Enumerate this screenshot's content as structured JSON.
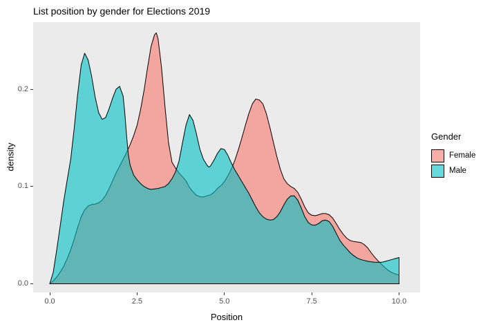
{
  "title": "List position by gender for Elections 2019",
  "axes": {
    "x": {
      "label": "Position",
      "tick_labels": [
        "0.0",
        "2.5",
        "5.0",
        "7.5",
        "10.0"
      ],
      "tick_values": [
        0,
        2.5,
        5,
        7.5,
        10
      ]
    },
    "y": {
      "label": "density",
      "tick_labels": [
        "0.0",
        "0.1",
        "0.2"
      ],
      "tick_values": [
        0,
        0.1,
        0.2
      ]
    }
  },
  "legend": {
    "title": "Gender",
    "position": "right",
    "fill_alpha": 0.6,
    "items": [
      {
        "label": "Female",
        "color": "#F8766D"
      },
      {
        "label": "Male",
        "color": "#00BFC4"
      }
    ]
  },
  "colors": {
    "panel_background": "#EBEBEB",
    "outline": "#000000",
    "tick_text": "#4D4D4D",
    "tick_mark": "#333333",
    "title_text": "#000000"
  },
  "chart_data": {
    "type": "area",
    "subtype": "density",
    "title": "List position by gender for Elections 2019",
    "xlabel": "Position",
    "ylabel": "density",
    "xlim": [
      -0.5,
      10.5
    ],
    "ylim": [
      0,
      0.269
    ],
    "grid": false,
    "legend_position": "right",
    "series": [
      {
        "name": "Female",
        "color": "#F8766D",
        "points": [
          [
            0,
            0
          ],
          [
            0.1,
            0.003
          ],
          [
            0.2,
            0.007
          ],
          [
            0.3,
            0.012
          ],
          [
            0.4,
            0.018
          ],
          [
            0.5,
            0.026
          ],
          [
            0.6,
            0.035
          ],
          [
            0.7,
            0.046
          ],
          [
            0.8,
            0.058
          ],
          [
            0.9,
            0.069
          ],
          [
            1,
            0.076
          ],
          [
            1.1,
            0.08
          ],
          [
            1.2,
            0.0815
          ],
          [
            1.3,
            0.082
          ],
          [
            1.4,
            0.0832
          ],
          [
            1.5,
            0.086
          ],
          [
            1.6,
            0.091
          ],
          [
            1.7,
            0.098
          ],
          [
            1.8,
            0.106
          ],
          [
            1.9,
            0.114
          ],
          [
            2,
            0.121
          ],
          [
            2.1,
            0.128
          ],
          [
            2.2,
            0.135
          ],
          [
            2.3,
            0.143
          ],
          [
            2.4,
            0.152
          ],
          [
            2.5,
            0.163
          ],
          [
            2.6,
            0.179
          ],
          [
            2.7,
            0.199
          ],
          [
            2.8,
            0.222
          ],
          [
            2.9,
            0.244
          ],
          [
            3,
            0.256
          ],
          [
            3.05,
            0.258
          ],
          [
            3.1,
            0.252
          ],
          [
            3.2,
            0.222
          ],
          [
            3.3,
            0.182
          ],
          [
            3.4,
            0.145
          ],
          [
            3.5,
            0.125
          ],
          [
            3.6,
            0.119
          ],
          [
            3.7,
            0.114
          ],
          [
            3.8,
            0.11
          ],
          [
            3.9,
            0.106
          ],
          [
            4,
            0.099
          ],
          [
            4.1,
            0.0945
          ],
          [
            4.2,
            0.091
          ],
          [
            4.3,
            0.0895
          ],
          [
            4.4,
            0.0893
          ],
          [
            4.5,
            0.0905
          ],
          [
            4.6,
            0.0915
          ],
          [
            4.7,
            0.094
          ],
          [
            4.8,
            0.098
          ],
          [
            4.9,
            0.101
          ],
          [
            5,
            0.105
          ],
          [
            5.1,
            0.111
          ],
          [
            5.2,
            0.118
          ],
          [
            5.3,
            0.127
          ],
          [
            5.4,
            0.138
          ],
          [
            5.5,
            0.15
          ],
          [
            5.6,
            0.163
          ],
          [
            5.7,
            0.175
          ],
          [
            5.8,
            0.185
          ],
          [
            5.9,
            0.19
          ],
          [
            6,
            0.189
          ],
          [
            6.1,
            0.185
          ],
          [
            6.2,
            0.175
          ],
          [
            6.3,
            0.161
          ],
          [
            6.4,
            0.146
          ],
          [
            6.5,
            0.131
          ],
          [
            6.6,
            0.118
          ],
          [
            6.7,
            0.108
          ],
          [
            6.8,
            0.103
          ],
          [
            6.9,
            0.1
          ],
          [
            7,
            0.098
          ],
          [
            7.1,
            0.094
          ],
          [
            7.2,
            0.087
          ],
          [
            7.3,
            0.079
          ],
          [
            7.4,
            0.073
          ],
          [
            7.5,
            0.0705
          ],
          [
            7.6,
            0.07
          ],
          [
            7.7,
            0.071
          ],
          [
            7.8,
            0.0722
          ],
          [
            7.9,
            0.0722
          ],
          [
            8,
            0.071
          ],
          [
            8.1,
            0.0675
          ],
          [
            8.2,
            0.062
          ],
          [
            8.3,
            0.056
          ],
          [
            8.4,
            0.051
          ],
          [
            8.5,
            0.047
          ],
          [
            8.6,
            0.0445
          ],
          [
            8.7,
            0.0435
          ],
          [
            8.8,
            0.043
          ],
          [
            8.9,
            0.0425
          ],
          [
            9,
            0.0405
          ],
          [
            9.1,
            0.037
          ],
          [
            9.2,
            0.032
          ],
          [
            9.3,
            0.0275
          ],
          [
            9.4,
            0.0235
          ],
          [
            9.5,
            0.02
          ],
          [
            9.6,
            0.0165
          ],
          [
            9.7,
            0.0135
          ],
          [
            9.8,
            0.0115
          ],
          [
            9.9,
            0.01
          ],
          [
            10,
            0.009
          ]
        ]
      },
      {
        "name": "Male",
        "color": "#00BFC4",
        "points": [
          [
            0,
            0
          ],
          [
            0.1,
            0.012
          ],
          [
            0.2,
            0.035
          ],
          [
            0.3,
            0.06
          ],
          [
            0.4,
            0.085
          ],
          [
            0.5,
            0.107
          ],
          [
            0.6,
            0.128
          ],
          [
            0.7,
            0.16
          ],
          [
            0.8,
            0.195
          ],
          [
            0.9,
            0.225
          ],
          [
            1,
            0.237
          ],
          [
            1.1,
            0.23
          ],
          [
            1.2,
            0.213
          ],
          [
            1.3,
            0.192
          ],
          [
            1.4,
            0.176
          ],
          [
            1.5,
            0.169
          ],
          [
            1.6,
            0.171
          ],
          [
            1.7,
            0.18
          ],
          [
            1.8,
            0.191
          ],
          [
            1.9,
            0.2
          ],
          [
            2,
            0.203
          ],
          [
            2.1,
            0.193
          ],
          [
            2.15,
            0.175
          ],
          [
            2.2,
            0.152
          ],
          [
            2.25,
            0.133
          ],
          [
            2.3,
            0.122
          ],
          [
            2.4,
            0.112
          ],
          [
            2.5,
            0.107
          ],
          [
            2.6,
            0.103
          ],
          [
            2.7,
            0.1
          ],
          [
            2.8,
            0.098
          ],
          [
            2.9,
            0.097
          ],
          [
            3,
            0.0975
          ],
          [
            3.1,
            0.098
          ],
          [
            3.2,
            0.099
          ],
          [
            3.3,
            0.1
          ],
          [
            3.4,
            0.103
          ],
          [
            3.5,
            0.108
          ],
          [
            3.6,
            0.115
          ],
          [
            3.7,
            0.126
          ],
          [
            3.8,
            0.145
          ],
          [
            3.9,
            0.163
          ],
          [
            4,
            0.174
          ],
          [
            4.1,
            0.168
          ],
          [
            4.2,
            0.154
          ],
          [
            4.3,
            0.138
          ],
          [
            4.4,
            0.128
          ],
          [
            4.5,
            0.122
          ],
          [
            4.55,
            0.12
          ],
          [
            4.6,
            0.121
          ],
          [
            4.7,
            0.127
          ],
          [
            4.8,
            0.134
          ],
          [
            4.9,
            0.139
          ],
          [
            5,
            0.138
          ],
          [
            5.1,
            0.132
          ],
          [
            5.2,
            0.124
          ],
          [
            5.3,
            0.117
          ],
          [
            5.4,
            0.111
          ],
          [
            5.5,
            0.105
          ],
          [
            5.6,
            0.099
          ],
          [
            5.7,
            0.093
          ],
          [
            5.8,
            0.086
          ],
          [
            5.9,
            0.079
          ],
          [
            6,
            0.073
          ],
          [
            6.1,
            0.069
          ],
          [
            6.2,
            0.0665
          ],
          [
            6.3,
            0.0655
          ],
          [
            6.4,
            0.066
          ],
          [
            6.5,
            0.069
          ],
          [
            6.6,
            0.074
          ],
          [
            6.7,
            0.081
          ],
          [
            6.8,
            0.087
          ],
          [
            6.9,
            0.0903
          ],
          [
            7,
            0.0905
          ],
          [
            7.1,
            0.086
          ],
          [
            7.2,
            0.078
          ],
          [
            7.3,
            0.069
          ],
          [
            7.4,
            0.063
          ],
          [
            7.5,
            0.0605
          ],
          [
            7.6,
            0.0603
          ],
          [
            7.7,
            0.062
          ],
          [
            7.8,
            0.0648
          ],
          [
            7.9,
            0.0655
          ],
          [
            8,
            0.064
          ],
          [
            8.1,
            0.059
          ],
          [
            8.2,
            0.052
          ],
          [
            8.3,
            0.045
          ],
          [
            8.4,
            0.04
          ],
          [
            8.5,
            0.036
          ],
          [
            8.6,
            0.032
          ],
          [
            8.7,
            0.029
          ],
          [
            8.8,
            0.0265
          ],
          [
            8.9,
            0.025
          ],
          [
            9,
            0.024
          ],
          [
            9.1,
            0.0232
          ],
          [
            9.2,
            0.0226
          ],
          [
            9.3,
            0.0222
          ],
          [
            9.4,
            0.022
          ],
          [
            9.5,
            0.0222
          ],
          [
            9.6,
            0.023
          ],
          [
            9.7,
            0.024
          ],
          [
            9.8,
            0.025
          ],
          [
            9.9,
            0.026
          ],
          [
            10,
            0.027
          ]
        ]
      }
    ]
  }
}
